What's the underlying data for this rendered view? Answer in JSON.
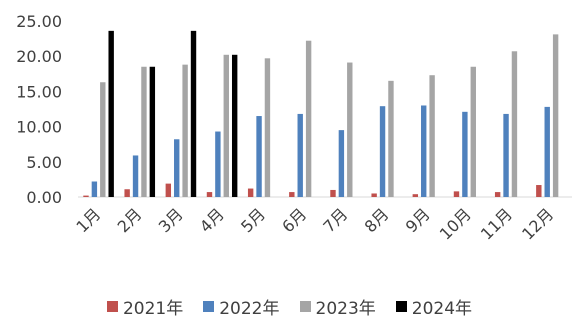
{
  "chart_data": {
    "type": "bar",
    "categories": [
      "1月",
      "2月",
      "3月",
      "4月",
      "5月",
      "6月",
      "7月",
      "8月",
      "9月",
      "10月",
      "11月",
      "12月"
    ],
    "series": [
      {
        "name": "2021年",
        "color": "#c0504d",
        "values": [
          0.2,
          1.1,
          1.9,
          0.7,
          1.2,
          0.7,
          1.0,
          0.5,
          0.4,
          0.8,
          0.7,
          1.7
        ]
      },
      {
        "name": "2022年",
        "color": "#4f81bd",
        "values": [
          2.2,
          5.9,
          8.2,
          9.3,
          11.5,
          11.8,
          9.5,
          12.9,
          13.0,
          12.1,
          11.8,
          12.8
        ]
      },
      {
        "name": "2023年",
        "color": "#a5a5a5",
        "values": [
          16.3,
          18.5,
          18.8,
          20.2,
          19.7,
          22.2,
          19.1,
          16.5,
          17.3,
          18.5,
          20.7,
          23.1
        ]
      },
      {
        "name": "2024年",
        "color": "#000000",
        "values": [
          23.6,
          18.5,
          23.6,
          20.2,
          null,
          null,
          null,
          null,
          null,
          null,
          null,
          null
        ]
      }
    ],
    "y_ticks": [
      "0.00",
      "5.00",
      "10.00",
      "15.00",
      "20.00",
      "25.00"
    ],
    "ylim": [
      0,
      25
    ],
    "legend_position": "bottom",
    "grid": false
  }
}
